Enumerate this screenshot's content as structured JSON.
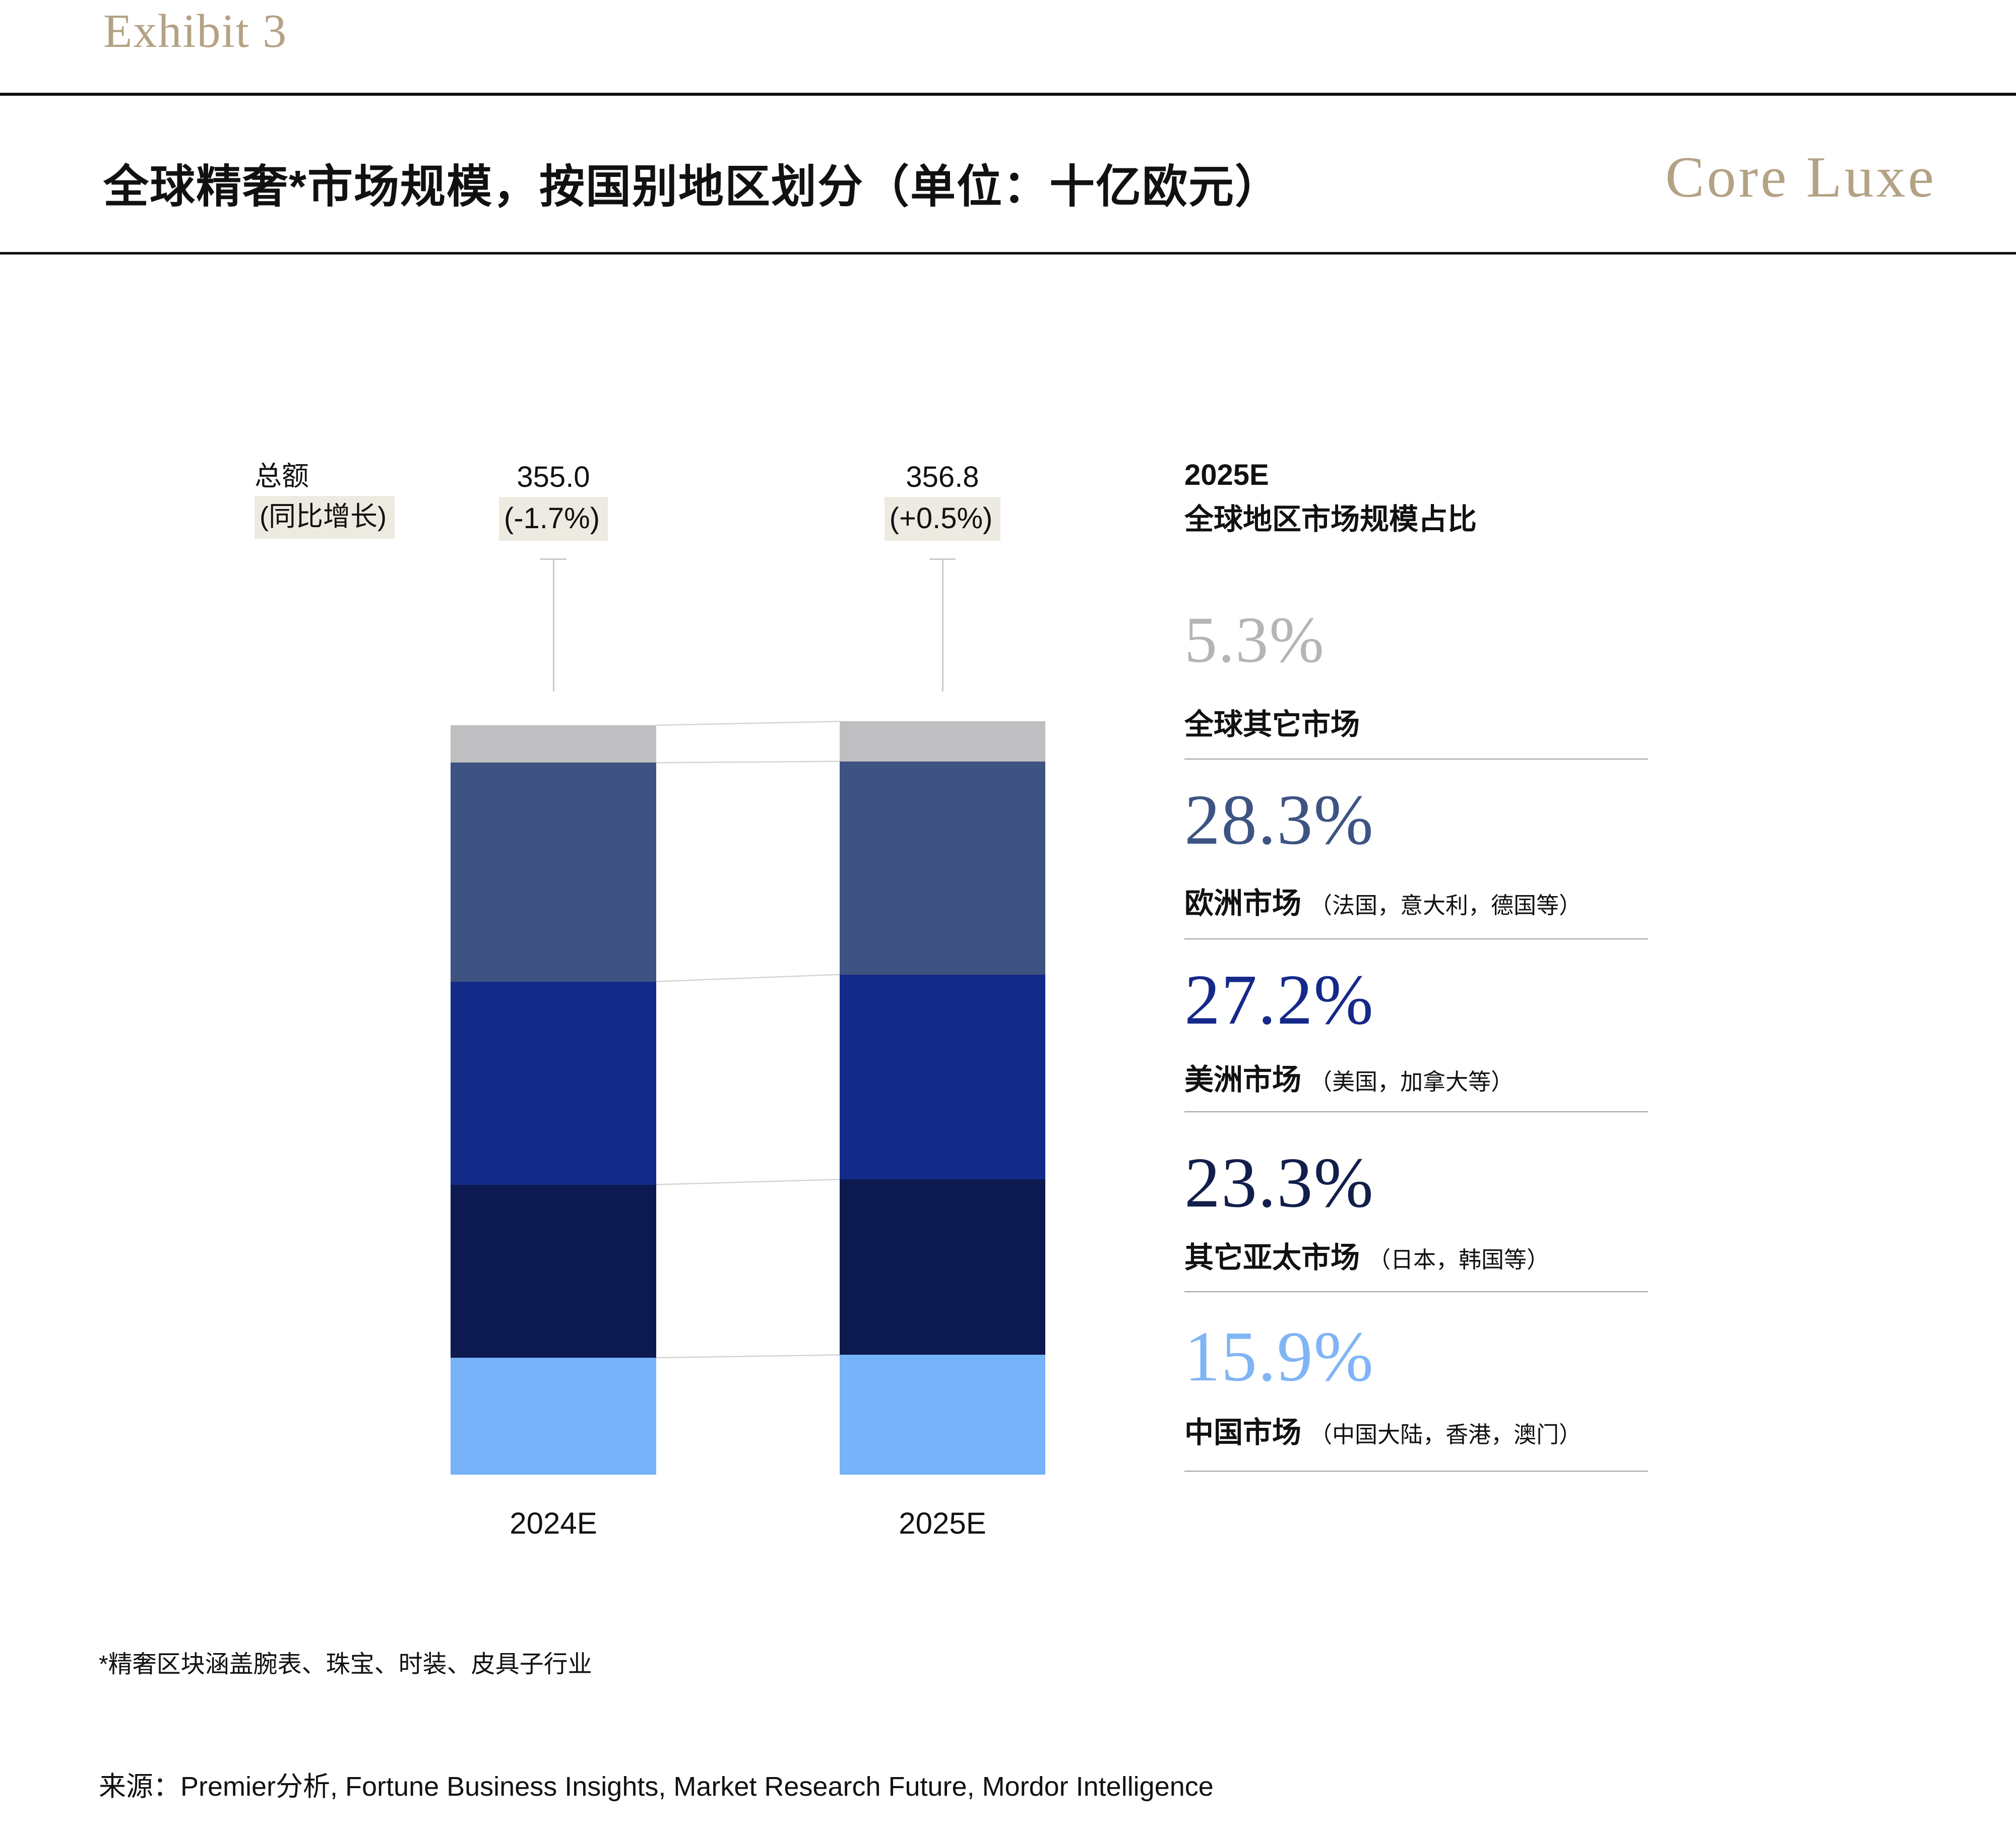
{
  "header": {
    "exhibit_label": "Exhibit 3",
    "title": "全球精奢*市场规模，按国别地区划分（单位：十亿欧元）",
    "brand": "Core Luxe"
  },
  "palette": {
    "accent_gold": "#b3a284",
    "highlight_beige": "#edeae1",
    "rule_black": "#111111",
    "divider_gray": "#9f9f9f",
    "connector_gray": "#d4d4d4"
  },
  "chart_data": {
    "type": "bar",
    "stacked": true,
    "unit": "十亿欧元",
    "title": "全球精奢*市场规模，按国别地区划分（单位：十亿欧元）",
    "categories": [
      "2024E",
      "2025E"
    ],
    "total_label_line1": "总额",
    "total_label_line2": "(同比增长)",
    "totals": [
      {
        "label": "355.0",
        "yoy": "(-1.7%)",
        "total": 355.0
      },
      {
        "label": "356.8",
        "yoy": "(+0.5%)",
        "total": 356.8
      }
    ],
    "series": [
      {
        "name": "全球其它市场",
        "color": "#bfbfc1",
        "values_pct": [
          5.0,
          5.3
        ]
      },
      {
        "name": "欧洲市场",
        "color": "#3e5381",
        "values_pct": [
          29.2,
          28.3
        ]
      },
      {
        "name": "美洲市场",
        "color": "#132a88",
        "values_pct": [
          27.1,
          27.2
        ]
      },
      {
        "name": "其它亚太市场",
        "color": "#0d1a4f",
        "values_pct": [
          23.1,
          23.3
        ]
      },
      {
        "name": "中国市场",
        "color": "#76b3f8",
        "values_pct": [
          15.6,
          15.9
        ]
      }
    ],
    "legend_position": "right",
    "grid": false
  },
  "breakdown": {
    "heading_line1": "2025E",
    "heading_line2": "全球地区市场规模占比",
    "items": [
      {
        "pct": "5.3%",
        "label": "全球其它市场",
        "note": "",
        "color": "#b5b5b7"
      },
      {
        "pct": "28.3%",
        "label": "欧洲市场",
        "note": "（法国，意大利，德国等）",
        "color": "#3d5483"
      },
      {
        "pct": "27.2%",
        "label": "美洲市场",
        "note": "（美国，加拿大等）",
        "color": "#15298a"
      },
      {
        "pct": "23.3%",
        "label": "其它亚太市场",
        "note": "（日本，韩国等）",
        "color": "#121f4c"
      },
      {
        "pct": "15.9%",
        "label": "中国市场",
        "note": "（中国大陆，香港，澳门）",
        "color": "#80b5f5"
      }
    ]
  },
  "footnote": "*精奢区块涵盖腕表、珠宝、时装、皮具子行业",
  "source": "来源：Premier分析, Fortune Business Insights, Market Research Future, Mordor Intelligence"
}
